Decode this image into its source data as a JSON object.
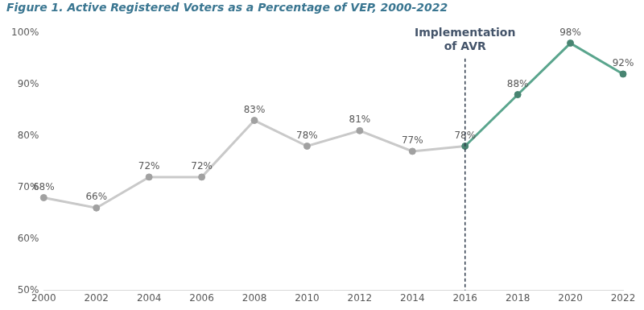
{
  "chart_data": {
    "type": "line",
    "title": "Figure 1. Active Registered Voters as a Percentage of VEP, 2000-2022",
    "x": [
      2000,
      2002,
      2004,
      2006,
      2008,
      2010,
      2012,
      2014,
      2016,
      2018,
      2020,
      2022
    ],
    "values": [
      68,
      66,
      72,
      72,
      83,
      78,
      81,
      77,
      78,
      88,
      98,
      92
    ],
    "value_labels": [
      "68%",
      "66%",
      "72%",
      "72%",
      "83%",
      "78%",
      "81%",
      "77%",
      "78%",
      "88%",
      "98%",
      "92%"
    ],
    "colors": [
      "#c9c9c9",
      "#c9c9c9",
      "#c9c9c9",
      "#c9c9c9",
      "#c9c9c9",
      "#c9c9c9",
      "#c9c9c9",
      "#c9c9c9",
      "#5aa58d",
      "#5aa58d",
      "#5aa58d",
      "#5aa58d"
    ],
    "marker": "circle",
    "line_style": "solid",
    "data_labels": true,
    "grid": false,
    "xlim": [
      2000,
      2022
    ],
    "xticks": [
      2000,
      2002,
      2004,
      2006,
      2008,
      2010,
      2012,
      2014,
      2016,
      2018,
      2020,
      2022
    ],
    "ylim": [
      50,
      100
    ],
    "yticks": [
      {
        "value": 50,
        "label": "50%"
      },
      {
        "value": 60,
        "label": "60%"
      },
      {
        "value": 70,
        "label": "70%"
      },
      {
        "value": 80,
        "label": "80%"
      },
      {
        "value": 90,
        "label": "90%"
      },
      {
        "value": 100,
        "label": "100%"
      }
    ],
    "annotations": [
      {
        "x": 2016,
        "text": "Implementation of AVR"
      }
    ]
  }
}
